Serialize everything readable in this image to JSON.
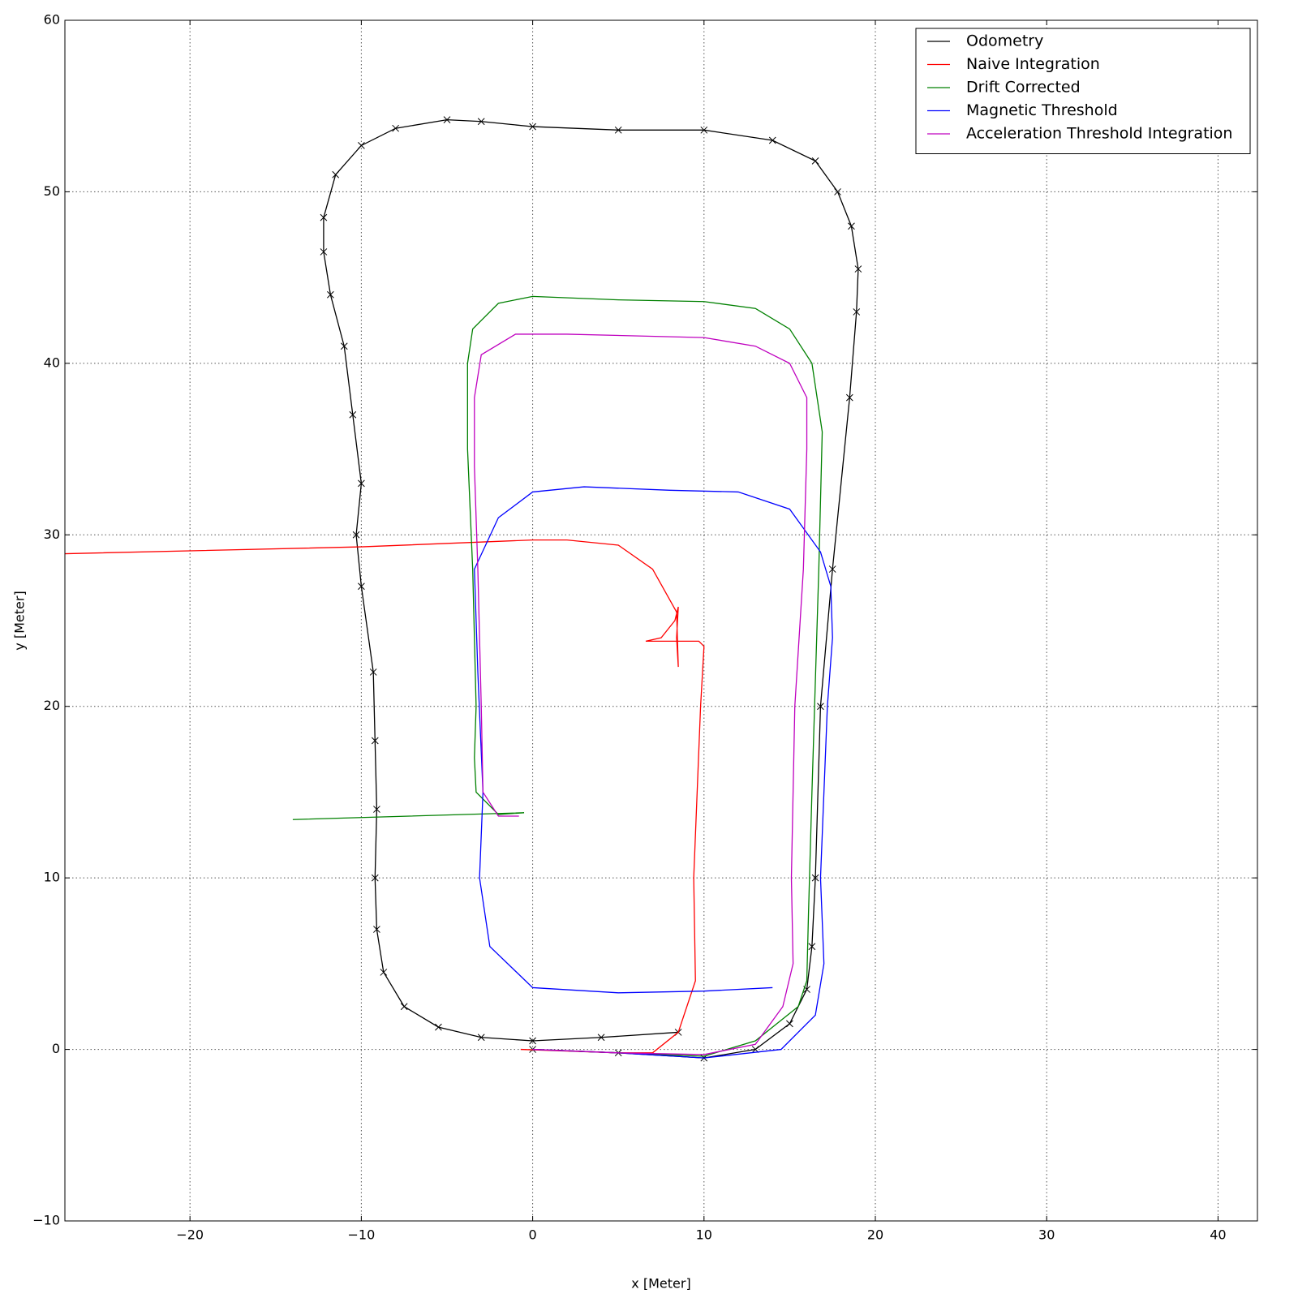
{
  "chart_data": {
    "type": "line",
    "xlabel": "x [Meter]",
    "ylabel": "y [Meter]",
    "xlim": [
      -27.3,
      42.3
    ],
    "ylim": [
      -10,
      60
    ],
    "xticks": [
      {
        "value": -20,
        "label": "−20"
      },
      {
        "value": -10,
        "label": "−10"
      },
      0,
      10,
      20,
      30,
      40
    ],
    "yticks": [
      {
        "value": -10,
        "label": "−10"
      },
      0,
      10,
      20,
      30,
      40,
      50,
      60
    ],
    "grid": true,
    "legend": "upper right",
    "series": [
      {
        "name": "Odometry",
        "color": "#000000",
        "marker": "x",
        "x": [
          0,
          5,
          10,
          13,
          15,
          16,
          16.3,
          16.5,
          16.8,
          17.5,
          18.5,
          18.9,
          19,
          18.6,
          17.8,
          16.5,
          14,
          10,
          5,
          0,
          -3,
          -5,
          -8,
          -10,
          -11.5,
          -12.2,
          -12.2,
          -11.8,
          -11,
          -10.5,
          -10,
          -10.3,
          -10,
          -9.3,
          -9.2,
          -9.1,
          -9.2,
          -9.1,
          -8.7,
          -7.5,
          -5.5,
          -3,
          0,
          4,
          8.5
        ],
        "values": [
          0,
          -0.2,
          -0.5,
          0,
          1.5,
          3.5,
          6,
          10,
          20,
          28,
          38,
          43,
          45.5,
          48,
          50,
          51.8,
          53,
          53.6,
          53.6,
          53.8,
          54.1,
          54.2,
          53.7,
          52.7,
          51,
          48.5,
          46.5,
          44,
          41,
          37,
          33,
          30,
          27,
          22,
          18,
          14,
          10,
          7,
          4.5,
          2.5,
          1.3,
          0.7,
          0.5,
          0.7,
          1
        ]
      },
      {
        "name": "Naive Integration",
        "color": "#ff0000",
        "x": [
          -0.7,
          5,
          7,
          8.5,
          9.5,
          9.4,
          9.8,
          10,
          9.7,
          8,
          6.6,
          7.5,
          8.3,
          8.5,
          8.4,
          8.5,
          8.4,
          7,
          5,
          2,
          0,
          -10,
          -27.3
        ],
        "values": [
          0,
          -0.2,
          -0.2,
          1,
          4,
          10,
          20,
          23.5,
          23.8,
          23.8,
          23.8,
          24,
          25,
          25.8,
          24,
          22.3,
          25.5,
          28,
          29.4,
          29.7,
          29.7,
          29.3,
          28.9
        ]
      },
      {
        "name": "Drift Corrected",
        "color": "#008000",
        "x": [
          -14,
          -0.5,
          -2,
          -3.3,
          -3.4,
          -3.3,
          -3.5,
          -3.8,
          -3.8,
          -3.5,
          -2,
          0,
          5,
          10,
          13,
          15,
          16.3,
          16.9,
          16.7,
          16.3,
          16.1,
          16,
          15.5,
          13,
          10,
          5,
          0
        ],
        "values": [
          13.4,
          13.8,
          13.7,
          15,
          17,
          20,
          28,
          35,
          40,
          42,
          43.5,
          43.9,
          43.7,
          43.6,
          43.2,
          42,
          40,
          36,
          28,
          15,
          8,
          4,
          2.5,
          0.5,
          -0.4,
          -0.2,
          0
        ]
      },
      {
        "name": "Magnetic Threshold",
        "color": "#0000ff",
        "x": [
          14,
          10,
          5,
          0,
          -2.5,
          -3.1,
          -2.9,
          -3.2,
          -3.4,
          -2,
          0,
          3,
          8,
          12,
          15,
          16.8,
          17.4,
          17.5,
          17.2,
          16.8,
          17,
          16.5,
          14.5,
          10,
          5,
          0
        ],
        "values": [
          3.6,
          3.4,
          3.3,
          3.6,
          6,
          10,
          15,
          22,
          28,
          31,
          32.5,
          32.8,
          32.6,
          32.5,
          31.5,
          29,
          27,
          24,
          20,
          10,
          5,
          2,
          0,
          -0.5,
          -0.2,
          0
        ]
      },
      {
        "name": "Acceleration Threshold Integration",
        "color": "#bf00bf",
        "x": [
          -0.8,
          -2,
          -2.9,
          -3,
          -3.2,
          -3.4,
          -3.4,
          -3,
          -1,
          2,
          10,
          13,
          15,
          16,
          16,
          15.8,
          15.3,
          15.1,
          15.2,
          14.6,
          13,
          10,
          5,
          0
        ],
        "values": [
          13.6,
          13.6,
          15,
          20,
          28,
          34,
          38,
          40.5,
          41.7,
          41.7,
          41.5,
          41,
          40,
          38,
          35,
          28,
          20,
          10,
          5,
          2.5,
          0.3,
          -0.3,
          -0.2,
          0
        ]
      }
    ]
  }
}
